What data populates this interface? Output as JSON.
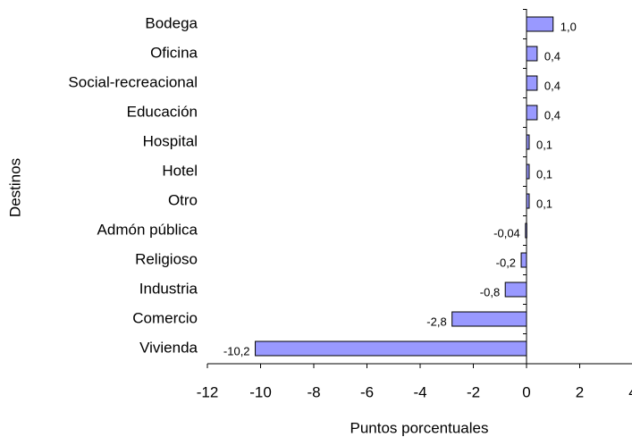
{
  "chart_data": {
    "type": "barh",
    "categories": [
      "Bodega",
      "Oficina",
      "Social-recreacional",
      "Educación",
      "Hospital",
      "Hotel",
      "Otro",
      "Admón pública",
      "Religioso",
      "Industria",
      "Comercio",
      "Vivienda"
    ],
    "values": [
      1.0,
      0.4,
      0.4,
      0.4,
      0.1,
      0.1,
      0.1,
      -0.04,
      -0.2,
      -0.8,
      -2.8,
      -10.2
    ],
    "value_labels": [
      "1,0",
      "0,4",
      "0,4",
      "0,4",
      "0,1",
      "0,1",
      "0,1",
      "-0,04",
      "-0,2",
      "-0,8",
      "-2,8",
      "-10,2"
    ],
    "color": "#9999ff",
    "xlim": [
      -12,
      4
    ],
    "xticks": [
      -12,
      -10,
      -8,
      -6,
      -4,
      -2,
      0,
      2,
      4
    ],
    "xlabel": "Puntos porcentuales",
    "ylabel": "Destinos"
  }
}
